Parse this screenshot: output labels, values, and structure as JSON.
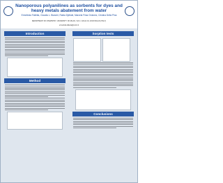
{
  "header": {
    "title": "Nanoporous polyanilines as sorbents for dyes and heavy metals abatement from water",
    "authors": "Ermelinda Falletta, Claudia L. Bianchi, Rabia Djellabi, Marcela Frias Ordonez, Cristina Della Pina",
    "affiliation": "DEPARTMENT OF CHEMISTRY, UNIVERSITY OF MILAN, VIA C. GOLGI 19, 20133 MILAN (ITALY)",
    "email": "ermelinda.falletta@unimi.it"
  },
  "sections": [
    {
      "heading": "Introduction"
    },
    {
      "heading": "Method"
    },
    {
      "heading": "Sorption tests"
    },
    {
      "heading": "Conclusions"
    }
  ]
}
